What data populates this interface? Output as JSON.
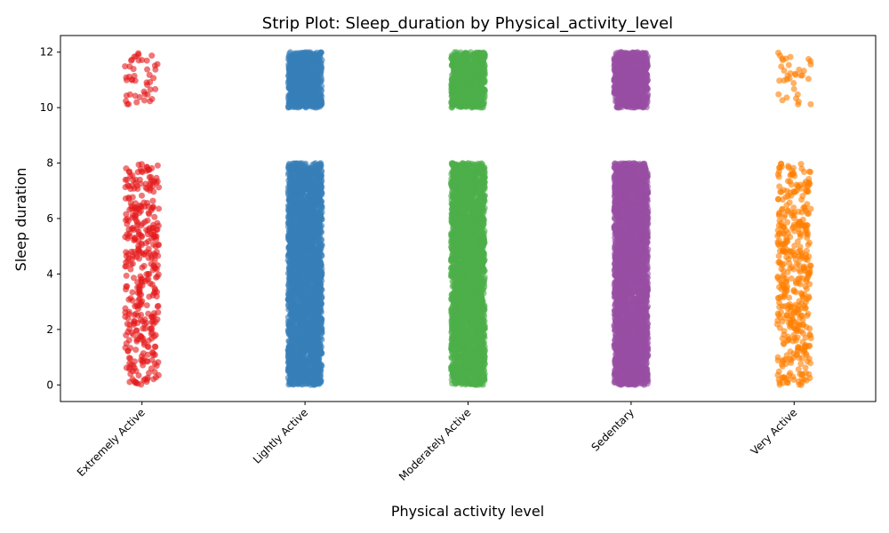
{
  "chart_data": {
    "type": "scatter",
    "subtype": "strip",
    "title": "Strip Plot: Sleep_duration by Physical_activity_level",
    "xlabel": "Physical activity level",
    "ylabel": "Sleep duration",
    "ylim": [
      -0.6,
      12.6
    ],
    "yticks": [
      0,
      2,
      4,
      6,
      8,
      10,
      12
    ],
    "grid": false,
    "legend": "none",
    "categories": [
      "Extremely Active",
      "Lightly Active",
      "Moderately Active",
      "Sedentary",
      "Very Active"
    ],
    "series": [
      {
        "category": "Extremely Active",
        "color": "#e41a1c",
        "density": "sparse",
        "ranges": [
          {
            "min": 0.0,
            "max": 8.0,
            "count": 380
          },
          {
            "min": 10.1,
            "max": 12.0,
            "count": 45
          }
        ]
      },
      {
        "category": "Lightly Active",
        "color": "#377eb8",
        "density": "dense",
        "ranges": [
          {
            "min": 0.0,
            "max": 8.0,
            "count": 2600
          },
          {
            "min": 10.0,
            "max": 12.0,
            "count": 700
          }
        ]
      },
      {
        "category": "Moderately Active",
        "color": "#4daf4a",
        "density": "dense",
        "ranges": [
          {
            "min": 0.0,
            "max": 8.0,
            "count": 2600
          },
          {
            "min": 10.0,
            "max": 12.0,
            "count": 700
          }
        ]
      },
      {
        "category": "Sedentary",
        "color": "#984ea3",
        "density": "dense",
        "ranges": [
          {
            "min": 0.0,
            "max": 8.0,
            "count": 3000
          },
          {
            "min": 10.0,
            "max": 12.0,
            "count": 800
          }
        ]
      },
      {
        "category": "Very Active",
        "color": "#ff7f00",
        "density": "sparse",
        "ranges": [
          {
            "min": 0.0,
            "max": 8.0,
            "count": 420
          },
          {
            "min": 10.1,
            "max": 12.0,
            "count": 35
          }
        ]
      }
    ]
  }
}
